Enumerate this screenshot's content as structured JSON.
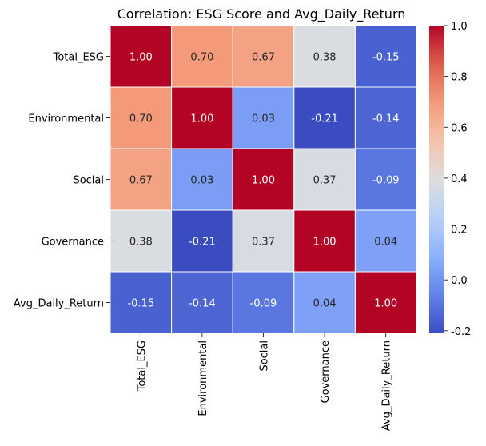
{
  "chart_data": {
    "type": "heatmap",
    "title": "Correlation: ESG Score and Avg_Daily_Return",
    "row_labels": [
      "Total_ESG",
      "Environmental",
      "Social",
      "Governance",
      "Avg_Daily_Return"
    ],
    "col_labels": [
      "Total_ESG",
      "Environmental",
      "Social",
      "Governance",
      "Avg_Daily_Return"
    ],
    "values": [
      [
        1.0,
        0.7,
        0.67,
        0.38,
        -0.15
      ],
      [
        0.7,
        1.0,
        0.03,
        -0.21,
        -0.14
      ],
      [
        0.67,
        0.03,
        1.0,
        0.37,
        -0.09
      ],
      [
        0.38,
        -0.21,
        0.37,
        1.0,
        0.04
      ],
      [
        -0.15,
        -0.14,
        -0.09,
        0.04,
        1.0
      ]
    ],
    "annotations": [
      [
        "1.00",
        "0.70",
        "0.67",
        "0.38",
        "-0.15"
      ],
      [
        "0.70",
        "1.00",
        "0.03",
        "-0.21",
        "-0.14"
      ],
      [
        "0.67",
        "0.03",
        "1.00",
        "0.37",
        "-0.09"
      ],
      [
        "0.38",
        "-0.21",
        "0.37",
        "1.00",
        "0.04"
      ],
      [
        "-0.15",
        "-0.14",
        "-0.09",
        "0.04",
        "1.00"
      ]
    ],
    "colormap": "coolwarm",
    "color_range": [
      -0.21,
      1.0
    ],
    "colorbar_ticks": [
      "1.0",
      "0.8",
      "0.6",
      "0.4",
      "0.2",
      "0.0",
      "-0.2"
    ],
    "colorbar_tick_values": [
      1.0,
      0.8,
      0.6,
      0.4,
      0.2,
      0.0,
      -0.2
    ],
    "grid": false,
    "legend": "colorbar-right"
  }
}
